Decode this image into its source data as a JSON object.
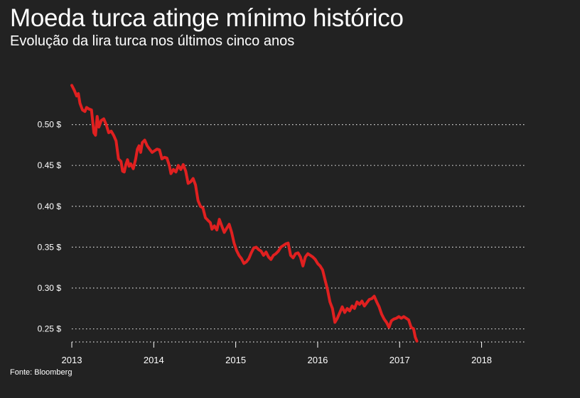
{
  "header": {
    "title": "Moeda turca atinge mínimo histórico",
    "subtitle": "Evolução da lira turca nos últimos cinco anos"
  },
  "footer": {
    "source": "Fonte: Bloomberg"
  },
  "colors": {
    "background": "#222222",
    "line": "#e02020",
    "grid": "#dddddd",
    "text": "#ffffff"
  },
  "chart_data": {
    "type": "line",
    "grid": true,
    "xlim": [
      2013.0,
      2018.55
    ],
    "ylim": [
      0.234,
      0.55
    ],
    "y_ticks": [
      0.25,
      0.3,
      0.35,
      0.4,
      0.45,
      0.5
    ],
    "y_tick_labels": [
      "0.25 $",
      "0.30 $",
      "0.35 $",
      "0.40 $",
      "0.45 $",
      "0.50 $"
    ],
    "x_ticks": [
      2013,
      2014,
      2015,
      2016,
      2017,
      2018
    ],
    "x_tick_labels": [
      "2013",
      "2014",
      "2015",
      "2016",
      "2017",
      "2018"
    ],
    "series": [
      {
        "points": [
          [
            2013.0,
            0.548
          ],
          [
            2013.03,
            0.542
          ],
          [
            2013.06,
            0.535
          ],
          [
            2013.08,
            0.538
          ],
          [
            2013.1,
            0.526
          ],
          [
            2013.13,
            0.518
          ],
          [
            2013.16,
            0.516
          ],
          [
            2013.18,
            0.521
          ],
          [
            2013.21,
            0.519
          ],
          [
            2013.24,
            0.518
          ],
          [
            2013.27,
            0.49
          ],
          [
            2013.29,
            0.487
          ],
          [
            2013.31,
            0.51
          ],
          [
            2013.33,
            0.497
          ],
          [
            2013.36,
            0.505
          ],
          [
            2013.39,
            0.507
          ],
          [
            2013.42,
            0.5
          ],
          [
            2013.45,
            0.49
          ],
          [
            2013.48,
            0.492
          ],
          [
            2013.51,
            0.487
          ],
          [
            2013.54,
            0.48
          ],
          [
            2013.57,
            0.458
          ],
          [
            2013.6,
            0.455
          ],
          [
            2013.62,
            0.443
          ],
          [
            2013.64,
            0.442
          ],
          [
            2013.66,
            0.451
          ],
          [
            2013.68,
            0.457
          ],
          [
            2013.7,
            0.449
          ],
          [
            2013.72,
            0.452
          ],
          [
            2013.75,
            0.446
          ],
          [
            2013.78,
            0.458
          ],
          [
            2013.8,
            0.47
          ],
          [
            2013.82,
            0.474
          ],
          [
            2013.84,
            0.466
          ],
          [
            2013.86,
            0.478
          ],
          [
            2013.89,
            0.481
          ],
          [
            2013.92,
            0.474
          ],
          [
            2013.95,
            0.47
          ],
          [
            2013.98,
            0.466
          ],
          [
            2014.01,
            0.468
          ],
          [
            2014.04,
            0.47
          ],
          [
            2014.07,
            0.469
          ],
          [
            2014.1,
            0.458
          ],
          [
            2014.13,
            0.46
          ],
          [
            2014.16,
            0.459
          ],
          [
            2014.19,
            0.45
          ],
          [
            2014.21,
            0.44
          ],
          [
            2014.24,
            0.445
          ],
          [
            2014.27,
            0.442
          ],
          [
            2014.3,
            0.45
          ],
          [
            2014.33,
            0.445
          ],
          [
            2014.36,
            0.451
          ],
          [
            2014.39,
            0.443
          ],
          [
            2014.42,
            0.428
          ],
          [
            2014.45,
            0.43
          ],
          [
            2014.48,
            0.434
          ],
          [
            2014.51,
            0.426
          ],
          [
            2014.54,
            0.407
          ],
          [
            2014.57,
            0.4
          ],
          [
            2014.6,
            0.398
          ],
          [
            2014.63,
            0.386
          ],
          [
            2014.66,
            0.383
          ],
          [
            2014.69,
            0.38
          ],
          [
            2014.71,
            0.372
          ],
          [
            2014.74,
            0.376
          ],
          [
            2014.77,
            0.371
          ],
          [
            2014.8,
            0.384
          ],
          [
            2014.83,
            0.376
          ],
          [
            2014.86,
            0.368
          ],
          [
            2014.89,
            0.373
          ],
          [
            2014.92,
            0.378
          ],
          [
            2014.95,
            0.368
          ],
          [
            2014.98,
            0.355
          ],
          [
            2015.01,
            0.346
          ],
          [
            2015.04,
            0.34
          ],
          [
            2015.07,
            0.336
          ],
          [
            2015.1,
            0.33
          ],
          [
            2015.13,
            0.332
          ],
          [
            2015.16,
            0.336
          ],
          [
            2015.19,
            0.343
          ],
          [
            2015.22,
            0.349
          ],
          [
            2015.25,
            0.35
          ],
          [
            2015.28,
            0.347
          ],
          [
            2015.31,
            0.345
          ],
          [
            2015.34,
            0.34
          ],
          [
            2015.37,
            0.344
          ],
          [
            2015.4,
            0.338
          ],
          [
            2015.43,
            0.335
          ],
          [
            2015.46,
            0.34
          ],
          [
            2015.49,
            0.342
          ],
          [
            2015.52,
            0.345
          ],
          [
            2015.55,
            0.35
          ],
          [
            2015.58,
            0.352
          ],
          [
            2015.61,
            0.354
          ],
          [
            2015.64,
            0.355
          ],
          [
            2015.67,
            0.34
          ],
          [
            2015.7,
            0.337
          ],
          [
            2015.73,
            0.342
          ],
          [
            2015.76,
            0.343
          ],
          [
            2015.79,
            0.338
          ],
          [
            2015.82,
            0.327
          ],
          [
            2015.85,
            0.338
          ],
          [
            2015.88,
            0.342
          ],
          [
            2015.91,
            0.34
          ],
          [
            2015.94,
            0.338
          ],
          [
            2015.97,
            0.335
          ],
          [
            2016.0,
            0.33
          ],
          [
            2016.03,
            0.327
          ],
          [
            2016.06,
            0.322
          ],
          [
            2016.09,
            0.31
          ],
          [
            2016.12,
            0.298
          ],
          [
            2016.15,
            0.283
          ],
          [
            2016.18,
            0.275
          ],
          [
            2016.21,
            0.258
          ],
          [
            2016.24,
            0.263
          ],
          [
            2016.27,
            0.27
          ],
          [
            2016.3,
            0.277
          ],
          [
            2016.33,
            0.27
          ],
          [
            2016.36,
            0.275
          ],
          [
            2016.39,
            0.272
          ],
          [
            2016.42,
            0.278
          ],
          [
            2016.45,
            0.275
          ],
          [
            2016.48,
            0.283
          ],
          [
            2016.51,
            0.28
          ],
          [
            2016.54,
            0.284
          ],
          [
            2016.57,
            0.278
          ],
          [
            2016.6,
            0.282
          ],
          [
            2016.63,
            0.286
          ],
          [
            2016.66,
            0.287
          ],
          [
            2016.69,
            0.29
          ],
          [
            2016.72,
            0.283
          ],
          [
            2016.75,
            0.277
          ],
          [
            2016.78,
            0.268
          ],
          [
            2016.81,
            0.262
          ],
          [
            2016.84,
            0.258
          ],
          [
            2016.87,
            0.252
          ],
          [
            2016.9,
            0.26
          ],
          [
            2016.93,
            0.262
          ],
          [
            2016.96,
            0.263
          ],
          [
            2016.99,
            0.265
          ],
          [
            2017.02,
            0.263
          ],
          [
            2017.05,
            0.265
          ],
          [
            2017.08,
            0.263
          ],
          [
            2017.11,
            0.261
          ],
          [
            2017.14,
            0.252
          ],
          [
            2017.17,
            0.25
          ],
          [
            2017.19,
            0.24
          ],
          [
            2017.21,
            0.235
          ]
        ]
      }
    ]
  }
}
